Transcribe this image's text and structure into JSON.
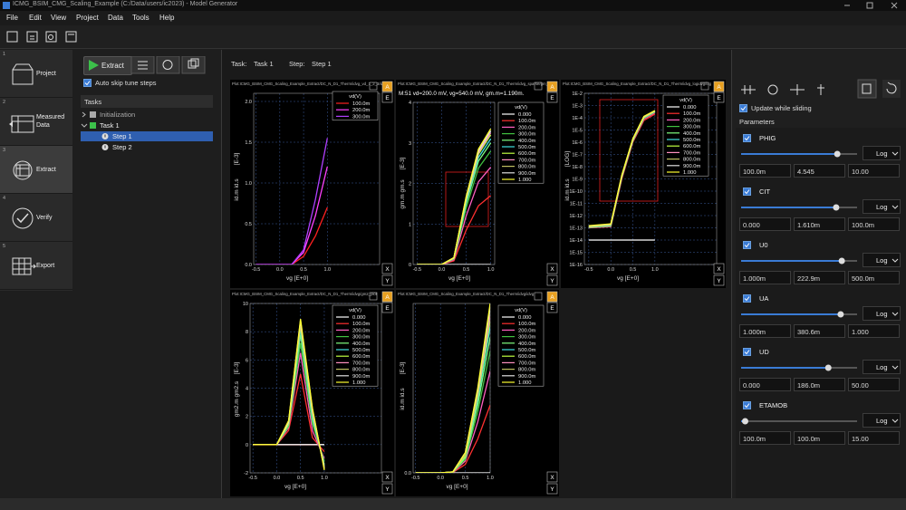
{
  "window": {
    "title": "ICMG_BSIM_CMG_Scaling_Example (C:/Data/users/ic2023) - Model Generator"
  },
  "menu": [
    "File",
    "Edit",
    "View",
    "Project",
    "Data",
    "Tools",
    "Help"
  ],
  "nav": [
    {
      "number": 1,
      "label": "Project"
    },
    {
      "number": 2,
      "label": "Measured Data"
    },
    {
      "number": 3,
      "label": "Extract"
    },
    {
      "number": 4,
      "label": "Verify"
    },
    {
      "number": 5,
      "label": "Export"
    }
  ],
  "task_panel": {
    "extract_button": "Extract",
    "auto_skip": "Auto skip tune steps",
    "tasks_header": "Tasks",
    "tree": [
      "Initialization",
      "Task 1",
      "Step 1",
      "Step 2"
    ]
  },
  "breadcrumb": {
    "task_label": "Task:",
    "task": "Task 1",
    "step_label": "Step:",
    "step": "Step 1"
  },
  "plot_buttons": [
    "A",
    "E",
    "X",
    "Y"
  ],
  "right_panel": {
    "update": "Update while sliding",
    "parameters_header": "Parameters",
    "params": [
      {
        "name": "PHIG",
        "scale": "Log",
        "min": "100.0m",
        "value": "4.545",
        "max": "10.00"
      },
      {
        "name": "CIT",
        "scale": "Log",
        "min": "0.000",
        "value": "1.610m",
        "max": "100.0m"
      },
      {
        "name": "U0",
        "scale": "Log",
        "min": "1.000m",
        "value": "222.9m",
        "max": "500.0m"
      },
      {
        "name": "UA",
        "scale": "Log",
        "min": "1.000m",
        "value": "380.6m",
        "max": "1.000"
      },
      {
        "name": "UD",
        "scale": "Log",
        "min": "0.000",
        "value": "186.0m",
        "max": "50.00"
      },
      {
        "name": "ETAMOB",
        "scale": "Log",
        "min": "100.0m",
        "value": "100.0m",
        "max": "15.00"
      }
    ]
  },
  "chart_data": [
    {
      "type": "line",
      "title": "Plot:ICMG_BSIM_CMG_Scaling_Example_Extract/DC_N_D1_Therm/idvg_vd_1_2_3/idvg",
      "xlabel": "vg  [E+0]",
      "ylabel": "id.m  id.s",
      "yunit": "[E-3]",
      "legend_title": "vd(V)",
      "x": [
        -0.5,
        0.0,
        0.25,
        0.5,
        0.75,
        1.0
      ],
      "xlim": [
        -0.55,
        2.1
      ],
      "xticks": [
        -0.5,
        {
          "value": 0,
          "label": "0.0"
        },
        0.5,
        {
          "value": 1,
          "label": "1.0"
        }
      ],
      "ylim": [
        0,
        2.1
      ],
      "yticks": [
        {
          "value": 0,
          "label": "0.0"
        },
        0.5,
        {
          "value": 1,
          "label": "1.0"
        },
        1.5,
        {
          "value": 2,
          "label": "2.0"
        }
      ],
      "grid": true,
      "series": [
        {
          "name": "100.0m",
          "color": "#ff2020",
          "values": [
            0,
            0,
            0,
            0.1,
            0.35,
            0.7
          ]
        },
        {
          "name": "200.0m",
          "color": "#ff40ff",
          "values": [
            0,
            0,
            0,
            0.15,
            0.6,
            1.2
          ]
        },
        {
          "name": "300.0m",
          "color": "#b040ff",
          "values": [
            0,
            0,
            0,
            0.18,
            0.8,
            1.55
          ]
        }
      ]
    },
    {
      "type": "line",
      "title": "Plot:ICMG_BSIM_CMG_Scaling_Example_Extract/DC_N_D1_Therm/idvg_sparse/gm_plot",
      "annotation": "M:51 vd=200.0 mV, vg=540.0 mV, gm.m=1.190m.",
      "xlabel": "vg  [E+0]",
      "ylabel": "gm.m  gm.s",
      "yunit": "[E-3]",
      "legend_title": "vd(V)",
      "x": [
        -0.5,
        0.0,
        0.25,
        0.5,
        0.75,
        1.0
      ],
      "xlim": [
        -0.58,
        1.08
      ],
      "xticks": [
        -0.5,
        {
          "value": 0,
          "label": "0.0"
        },
        0.5,
        {
          "value": 1,
          "label": "1.0"
        }
      ],
      "ylim": [
        0,
        4
      ],
      "yticks": [
        0,
        1,
        2,
        3,
        4
      ],
      "grid": true,
      "series": [
        {
          "name": "0.000",
          "color": "#ffffff",
          "values": [
            0,
            0,
            0,
            0,
            0,
            0
          ]
        },
        {
          "name": "100.0m",
          "color": "#ff3030",
          "values": [
            0,
            0,
            0.09,
            0.85,
            1.45,
            1.7
          ]
        },
        {
          "name": "200.0m",
          "color": "#ff60c0",
          "values": [
            0,
            0,
            0.12,
            1.2,
            2.04,
            2.4
          ]
        },
        {
          "name": "300.0m",
          "color": "#40c040",
          "values": [
            0,
            0,
            0.14,
            1.4,
            2.38,
            2.8
          ]
        },
        {
          "name": "400.0m",
          "color": "#80ff80",
          "values": [
            0,
            0,
            0.15,
            1.5,
            2.55,
            3.0
          ]
        },
        {
          "name": "500.0m",
          "color": "#40e0e0",
          "values": [
            0,
            0,
            0.16,
            1.55,
            2.64,
            3.1
          ]
        },
        {
          "name": "600.0m",
          "color": "#c0ff40",
          "values": [
            0,
            0,
            0.16,
            1.6,
            2.72,
            3.2
          ]
        },
        {
          "name": "700.0m",
          "color": "#ff90c0",
          "values": [
            0,
            0,
            0.16,
            1.63,
            2.76,
            3.25
          ]
        },
        {
          "name": "800.0m",
          "color": "#c0c060",
          "values": [
            0,
            0,
            0.17,
            1.65,
            2.8,
            3.3
          ]
        },
        {
          "name": "900.0m",
          "color": "#e0e0e0",
          "values": [
            0,
            0,
            0.17,
            1.65,
            2.8,
            3.3
          ]
        },
        {
          "name": "1.000",
          "color": "#ffff30",
          "values": [
            0,
            0,
            0.17,
            1.68,
            2.85,
            3.35
          ]
        }
      ]
    },
    {
      "type": "line",
      "title": "Plot:ICMG_BSIM_CMG_Scaling_Example_Extract/DC_N_D1_Therm/idvg_logidvg/log",
      "xlabel": "vg  [E+0]",
      "ylabel": "id.m  id.s",
      "yunit": "[LOG]",
      "legend_title": "vd(V)",
      "log_y": true,
      "x": [
        -0.5,
        0.0,
        0.25,
        0.5,
        0.75,
        1.0
      ],
      "xlim": [
        -0.6,
        2.4
      ],
      "xticks": [
        -0.5,
        {
          "value": 0,
          "label": "0.0"
        },
        0.5,
        {
          "value": 1,
          "label": "1.0"
        }
      ],
      "ylim": [
        1e-16,
        0.01
      ],
      "yticks": [
        {
          "value": 0.01,
          "label": "1E-2"
        },
        {
          "value": 0.001,
          "label": "1E-3"
        },
        {
          "value": 0.0001,
          "label": "1E-4"
        },
        {
          "value": 1e-05,
          "label": "1E-5"
        },
        {
          "value": 1e-06,
          "label": "1E-6"
        },
        {
          "value": 1e-07,
          "label": "1E-7"
        },
        {
          "value": 1e-08,
          "label": "1E-8"
        },
        {
          "value": 1e-09,
          "label": "1E-9"
        },
        {
          "value": 1e-10,
          "label": "1E-10"
        },
        {
          "value": 1e-11,
          "label": "1E-11"
        },
        {
          "value": 1e-12,
          "label": "1E-12"
        },
        {
          "value": 1e-13,
          "label": "1E-13"
        },
        {
          "value": 1e-14,
          "label": "1E-14"
        },
        {
          "value": 1e-15,
          "label": "1E-15"
        },
        {
          "value": 1e-16,
          "label": "1E-16"
        }
      ],
      "grid": true,
      "series": [
        {
          "name": "0.000",
          "color": "#ffffff",
          "values": [
            1e-14,
            1e-14,
            1e-14,
            1e-14,
            1e-14,
            1e-14
          ]
        },
        {
          "name": "100.0m",
          "color": "#ff3030",
          "values": [
            1e-13,
            1.2e-13,
            1e-09,
            1e-06,
            6e-05,
            0.0002
          ]
        },
        {
          "name": "200.0m",
          "color": "#ff60c0",
          "values": [
            1e-13,
            1.3e-13,
            1.2e-09,
            1.2e-06,
            8e-05,
            0.00026
          ]
        },
        {
          "name": "300.0m",
          "color": "#40c040",
          "values": [
            1.1e-13,
            1.4e-13,
            1.4e-09,
            1.3e-06,
            9e-05,
            0.0003
          ]
        },
        {
          "name": "400.0m",
          "color": "#80ff80",
          "values": [
            1.1e-13,
            1.5e-13,
            1.5e-09,
            1.4e-06,
            0.0001,
            0.00032
          ]
        },
        {
          "name": "500.0m",
          "color": "#40e0e0",
          "values": [
            1.2e-13,
            1.6e-13,
            1.6e-09,
            1.5e-06,
            0.000105,
            0.00034
          ]
        },
        {
          "name": "600.0m",
          "color": "#c0ff40",
          "values": [
            1.2e-13,
            1.7e-13,
            1.7e-09,
            1.6e-06,
            0.00011,
            0.00035
          ]
        },
        {
          "name": "700.0m",
          "color": "#ff90c0",
          "values": [
            1.3e-13,
            1.8e-13,
            1.8e-09,
            1.7e-06,
            0.000115,
            0.00036
          ]
        },
        {
          "name": "800.0m",
          "color": "#c0c060",
          "values": [
            1.3e-13,
            1.9e-13,
            1.9e-09,
            1.8e-06,
            0.00012,
            0.00037
          ]
        },
        {
          "name": "900.0m",
          "color": "#e0e0e0",
          "values": [
            1.4e-13,
            2e-13,
            2e-09,
            1.9e-06,
            0.000125,
            0.00038
          ]
        },
        {
          "name": "1.000",
          "color": "#ffff30",
          "values": [
            1.5e-13,
            2.1e-13,
            2.1e-09,
            2e-06,
            0.00013,
            0.00039
          ]
        }
      ]
    },
    {
      "type": "line",
      "title": "Plot:ICMG_BSIM_CMG_Scaling_Example_Extract/DC_N_D1_Therm/idvg/gm2_plot",
      "xlabel": "vg  [E+0]",
      "ylabel": "gm2.m  gm2.s",
      "yunit": "[E-3]",
      "legend_title": "vd(V)",
      "x": [
        -0.5,
        0.0,
        0.25,
        0.5,
        0.75,
        1.0
      ],
      "xlim": [
        -0.56,
        2.2
      ],
      "xticks": [
        -0.5,
        {
          "value": 0,
          "label": "0.0"
        },
        0.5,
        {
          "value": 1,
          "label": "1.0"
        }
      ],
      "ylim": [
        -2,
        10
      ],
      "yticks": [
        -2,
        0,
        2,
        4,
        6,
        8,
        10
      ],
      "grid": true,
      "series": [
        {
          "name": "0.000",
          "color": "#ffffff",
          "values": [
            0,
            0,
            0,
            0,
            0,
            0
          ]
        },
        {
          "name": "100.0m",
          "color": "#ff3030",
          "values": [
            0,
            0,
            1,
            5,
            0.5,
            -0.5
          ]
        },
        {
          "name": "200.0m",
          "color": "#ff60c0",
          "values": [
            0,
            0,
            1.2,
            6.5,
            1,
            -1
          ]
        },
        {
          "name": "300.0m",
          "color": "#40c040",
          "values": [
            0,
            0,
            1.3,
            7.2,
            1.5,
            -1.2
          ]
        },
        {
          "name": "400.0m",
          "color": "#80ff80",
          "values": [
            0,
            0,
            1.4,
            7.8,
            1.8,
            -1.4
          ]
        },
        {
          "name": "500.0m",
          "color": "#40e0e0",
          "values": [
            0,
            0,
            1.5,
            8.2,
            2,
            -1.5
          ]
        },
        {
          "name": "600.0m",
          "color": "#c0ff40",
          "values": [
            0,
            0,
            1.5,
            8.4,
            2.2,
            -1.6
          ]
        },
        {
          "name": "700.0m",
          "color": "#ff90c0",
          "values": [
            0,
            0,
            1.6,
            8.6,
            2.3,
            -1.6
          ]
        },
        {
          "name": "800.0m",
          "color": "#c0c060",
          "values": [
            0,
            0,
            1.6,
            8.7,
            2.4,
            -1.7
          ]
        },
        {
          "name": "900.0m",
          "color": "#e0e0e0",
          "values": [
            0,
            0,
            1.6,
            8.8,
            2.5,
            -1.7
          ]
        },
        {
          "name": "1.000",
          "color": "#ffff30",
          "values": [
            0,
            0,
            1.7,
            8.9,
            2.6,
            -1.8
          ]
        }
      ]
    },
    {
      "type": "line",
      "title": "Plot:ICMG_BSIM_CMG_Scaling_Example_Extract/DC_N_D1_Therm/idvg/idvg",
      "xlabel": "vg  [E+0]",
      "ylabel": "id.m  id.s",
      "yunit": "[E-3]",
      "legend_title": "vd(V)",
      "x": [
        -0.5,
        0.0,
        0.25,
        0.5,
        0.75,
        1.0
      ],
      "xlim": [
        -0.55,
        1.0
      ],
      "xticks": [
        -0.5,
        {
          "value": 0,
          "label": "0.0"
        },
        0.5,
        {
          "value": 1,
          "label": "1.0"
        }
      ],
      "ylim": [
        0,
        1
      ],
      "yticks": [
        {
          "value": 0,
          "label": "0.0"
        }
      ],
      "grid": true,
      "series": [
        {
          "name": "0.000",
          "color": "#ffffff",
          "values": [
            0,
            0,
            0,
            0,
            0,
            0
          ]
        },
        {
          "name": "100.0m",
          "color": "#ff3030",
          "values": [
            0,
            0,
            0.002,
            0.05,
            0.2,
            0.4
          ]
        },
        {
          "name": "200.0m",
          "color": "#ff60c0",
          "values": [
            0,
            0,
            0.003,
            0.07,
            0.3,
            0.6
          ]
        },
        {
          "name": "300.0m",
          "color": "#40c040",
          "values": [
            0,
            0,
            0.004,
            0.08,
            0.36,
            0.72
          ]
        },
        {
          "name": "400.0m",
          "color": "#80ff80",
          "values": [
            0,
            0,
            0.004,
            0.09,
            0.4,
            0.8
          ]
        },
        {
          "name": "500.0m",
          "color": "#40e0e0",
          "values": [
            0,
            0,
            0.005,
            0.1,
            0.43,
            0.86
          ]
        },
        {
          "name": "600.0m",
          "color": "#c0ff40",
          "values": [
            0,
            0,
            0.005,
            0.1,
            0.45,
            0.9
          ]
        },
        {
          "name": "700.0m",
          "color": "#ff90c0",
          "values": [
            0,
            0,
            0.005,
            0.11,
            0.47,
            0.93
          ]
        },
        {
          "name": "800.0m",
          "color": "#c0c060",
          "values": [
            0,
            0,
            0.006,
            0.11,
            0.48,
            0.96
          ]
        },
        {
          "name": "900.0m",
          "color": "#e0e0e0",
          "values": [
            0,
            0,
            0.006,
            0.12,
            0.49,
            0.98
          ]
        },
        {
          "name": "1.000",
          "color": "#ffff30",
          "values": [
            0,
            0,
            0.006,
            0.12,
            0.5,
            1.0
          ]
        }
      ]
    }
  ]
}
